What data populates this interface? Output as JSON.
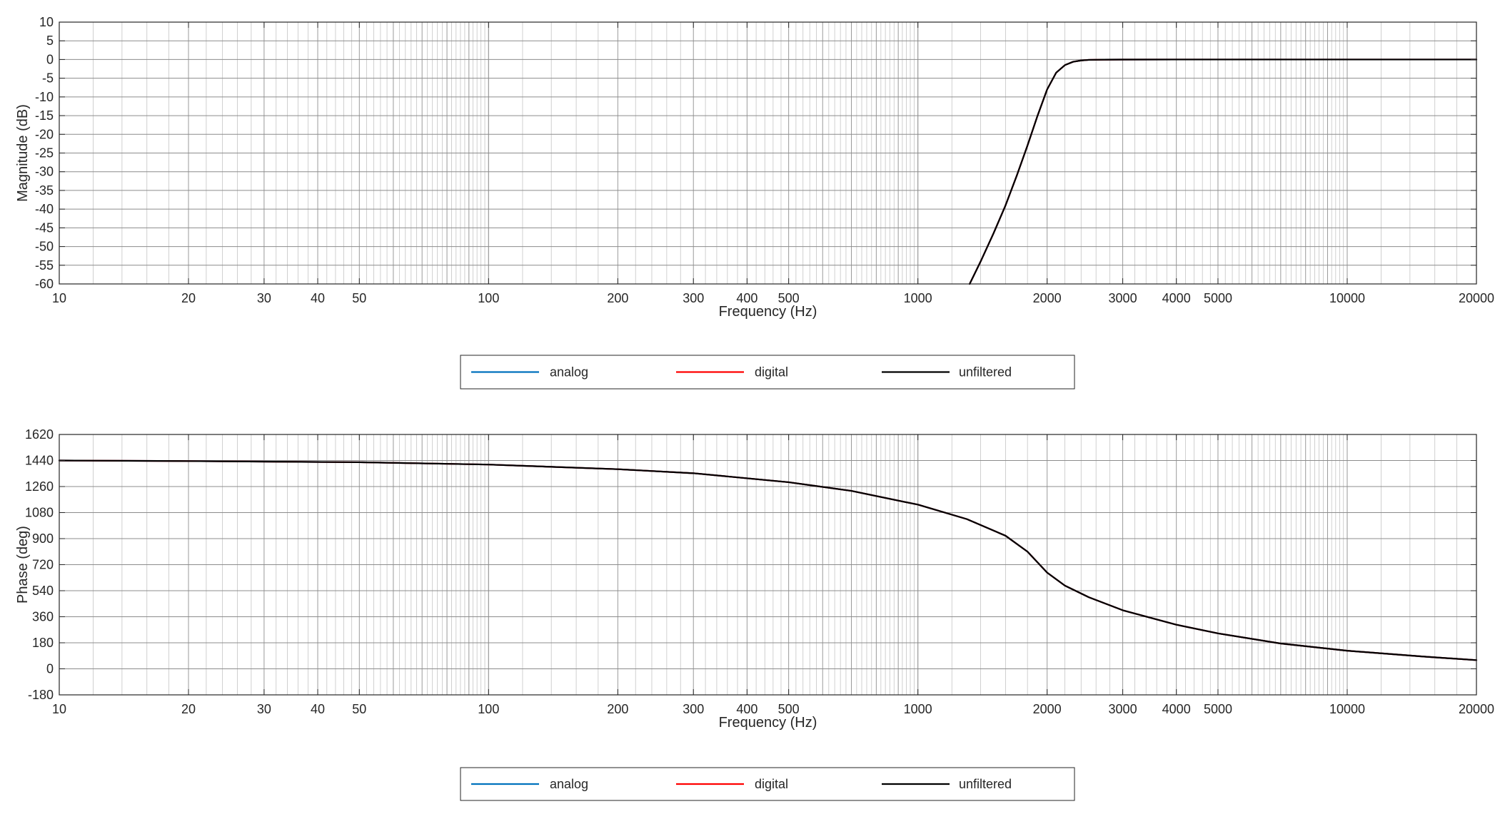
{
  "chart_data": [
    {
      "type": "line",
      "xlabel": "Frequency (Hz)",
      "ylabel": "Magnitude (dB)",
      "xscale": "log",
      "xlim": [
        10,
        20000
      ],
      "ylim": [
        -60,
        10
      ],
      "xticks": [
        10,
        20,
        30,
        40,
        50,
        100,
        200,
        300,
        400,
        500,
        1000,
        2000,
        3000,
        4000,
        5000,
        10000,
        20000
      ],
      "yticks": [
        -60,
        -55,
        -50,
        -45,
        -40,
        -35,
        -30,
        -25,
        -20,
        -15,
        -10,
        -5,
        0,
        5,
        10
      ],
      "grid": true,
      "legend_position": "bottom",
      "series": [
        {
          "name": "analog",
          "color": "#0072bd",
          "x": [
            1320,
            1400,
            1500,
            1600,
            1700,
            1800,
            1900,
            2000,
            2100,
            2200,
            2300,
            2400,
            2500,
            2700,
            3000,
            4000,
            5000,
            10000,
            20000
          ],
          "y": [
            -60,
            -54,
            -46.5,
            -39,
            -31,
            -23,
            -15,
            -8,
            -3.5,
            -1.5,
            -0.6,
            -0.25,
            -0.1,
            -0.03,
            -0.01,
            0,
            0,
            0,
            0
          ]
        },
        {
          "name": "digital",
          "color": "#ff0000",
          "x": [
            1320,
            1400,
            1500,
            1600,
            1700,
            1800,
            1900,
            2000,
            2100,
            2200,
            2300,
            2400,
            2500,
            2700,
            3000,
            4000,
            5000,
            10000,
            20000
          ],
          "y": [
            -60,
            -54,
            -46.5,
            -39,
            -31,
            -23,
            -15,
            -8,
            -3.5,
            -1.5,
            -0.6,
            -0.25,
            -0.1,
            -0.03,
            -0.01,
            0,
            0,
            0,
            0
          ]
        },
        {
          "name": "unfiltered",
          "color": "#000000",
          "x": [
            1320,
            1400,
            1500,
            1600,
            1700,
            1800,
            1900,
            2000,
            2100,
            2200,
            2300,
            2400,
            2500,
            2700,
            3000,
            4000,
            5000,
            10000,
            20000
          ],
          "y": [
            -60,
            -54,
            -46.5,
            -39,
            -31,
            -23,
            -15,
            -8,
            -3.5,
            -1.5,
            -0.6,
            -0.25,
            -0.1,
            -0.03,
            -0.01,
            0,
            0,
            0,
            0
          ]
        }
      ]
    },
    {
      "type": "line",
      "xlabel": "Frequency (Hz)",
      "ylabel": "Phase (deg)",
      "xscale": "log",
      "xlim": [
        10,
        20000
      ],
      "ylim": [
        -180,
        1620
      ],
      "xticks": [
        10,
        20,
        30,
        40,
        50,
        100,
        200,
        300,
        400,
        500,
        1000,
        2000,
        3000,
        4000,
        5000,
        10000,
        20000
      ],
      "yticks": [
        -180,
        0,
        180,
        360,
        540,
        720,
        900,
        1080,
        1260,
        1440,
        1620
      ],
      "grid": true,
      "legend_position": "bottom",
      "series": [
        {
          "name": "analog",
          "color": "#0072bd",
          "x": [
            10,
            20,
            50,
            100,
            200,
            300,
            500,
            700,
            1000,
            1300,
            1600,
            1800,
            2000,
            2200,
            2500,
            3000,
            4000,
            5000,
            7000,
            10000,
            15000,
            20000
          ],
          "y": [
            1440,
            1436,
            1428,
            1412,
            1380,
            1352,
            1290,
            1230,
            1135,
            1035,
            920,
            810,
            665,
            575,
            495,
            405,
            305,
            245,
            175,
            125,
            85,
            60
          ]
        },
        {
          "name": "digital",
          "color": "#ff0000",
          "x": [
            10,
            20,
            50,
            100,
            200,
            300,
            500,
            700,
            1000,
            1300,
            1600,
            1800,
            2000,
            2200,
            2500,
            3000,
            4000,
            5000,
            7000,
            10000,
            15000,
            20000
          ],
          "y": [
            1440,
            1436,
            1428,
            1412,
            1380,
            1352,
            1290,
            1230,
            1135,
            1035,
            920,
            810,
            665,
            575,
            495,
            405,
            305,
            245,
            175,
            125,
            85,
            60
          ]
        },
        {
          "name": "unfiltered",
          "color": "#000000",
          "x": [
            10,
            20,
            50,
            100,
            200,
            300,
            500,
            700,
            1000,
            1300,
            1600,
            1800,
            2000,
            2200,
            2500,
            3000,
            4000,
            5000,
            7000,
            10000,
            15000,
            20000
          ],
          "y": [
            1440,
            1436,
            1428,
            1412,
            1380,
            1352,
            1290,
            1230,
            1135,
            1035,
            920,
            810,
            665,
            575,
            495,
            405,
            305,
            245,
            175,
            125,
            85,
            60
          ]
        }
      ]
    }
  ]
}
